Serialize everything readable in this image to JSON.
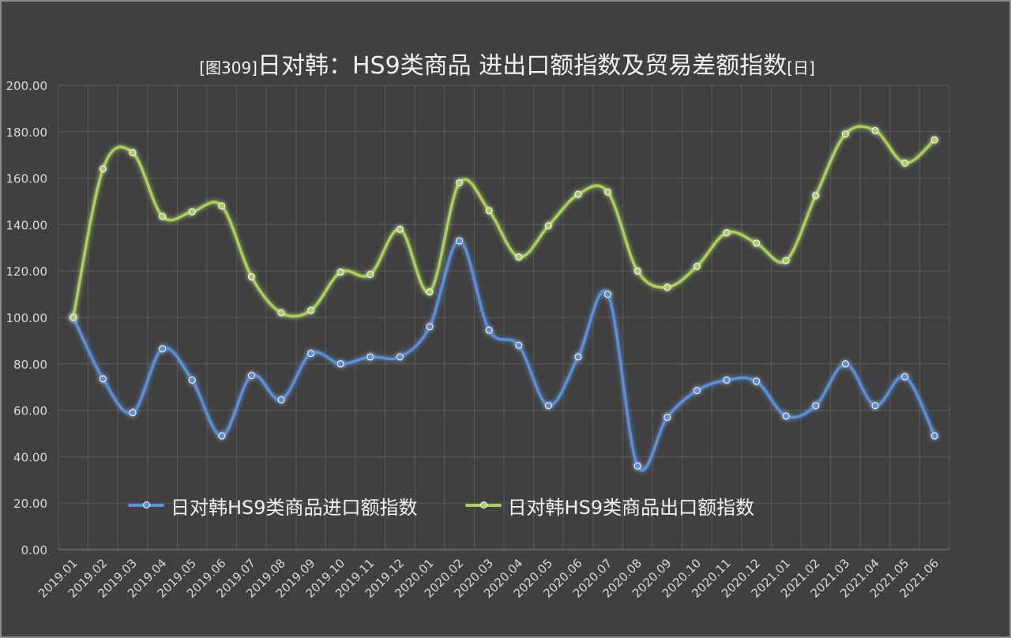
{
  "chart_data": {
    "type": "line",
    "title_prefix": "[图309]",
    "title_main": "日对韩：HS9类商品 进出口额指数及贸易差额指数",
    "title_suffix": "[日]",
    "xlabel": "",
    "ylabel": "",
    "ylim": [
      0,
      200
    ],
    "y_ticks": [
      "0.00",
      "20.00",
      "40.00",
      "60.00",
      "80.00",
      "100.00",
      "120.00",
      "140.00",
      "160.00",
      "180.00",
      "200.00"
    ],
    "grid": true,
    "legend_position": "bottom-left",
    "categories": [
      "2019.01",
      "2019.02",
      "2019.03",
      "2019.04",
      "2019.05",
      "2019.06",
      "2019.07",
      "2019.08",
      "2019.09",
      "2019.10",
      "2019.11",
      "2019.12",
      "2020.01",
      "2020.02",
      "2020.03",
      "2020.04",
      "2020.05",
      "2020.06",
      "2020.07",
      "2020.08",
      "2020.09",
      "2020.10",
      "2020.11",
      "2020.12",
      "2021.01",
      "2021.02",
      "2021.03",
      "2021.04",
      "2021.05",
      "2021.06"
    ],
    "series": [
      {
        "name": "日对韩HS9类商品进口额指数",
        "color": "#5b8fd6",
        "values": [
          100,
          73.5,
          59,
          86.5,
          73,
          49,
          75,
          64.5,
          84.5,
          80,
          83,
          83,
          96,
          133,
          94.5,
          88,
          62,
          83,
          110,
          36,
          57,
          68.5,
          73,
          72.5,
          57.5,
          62,
          80,
          62,
          74.5,
          49
        ]
      },
      {
        "name": "日对韩HS9类商品出口额指数",
        "color": "#a8cf60",
        "values": [
          100,
          164,
          171,
          143.5,
          145.5,
          148,
          117.5,
          102,
          103,
          119.5,
          118.5,
          138,
          111,
          158,
          146,
          126,
          139.5,
          153,
          154,
          120,
          113,
          122,
          136.5,
          132,
          124.5,
          152.5,
          179,
          180.5,
          166.5,
          176.5
        ]
      }
    ]
  }
}
